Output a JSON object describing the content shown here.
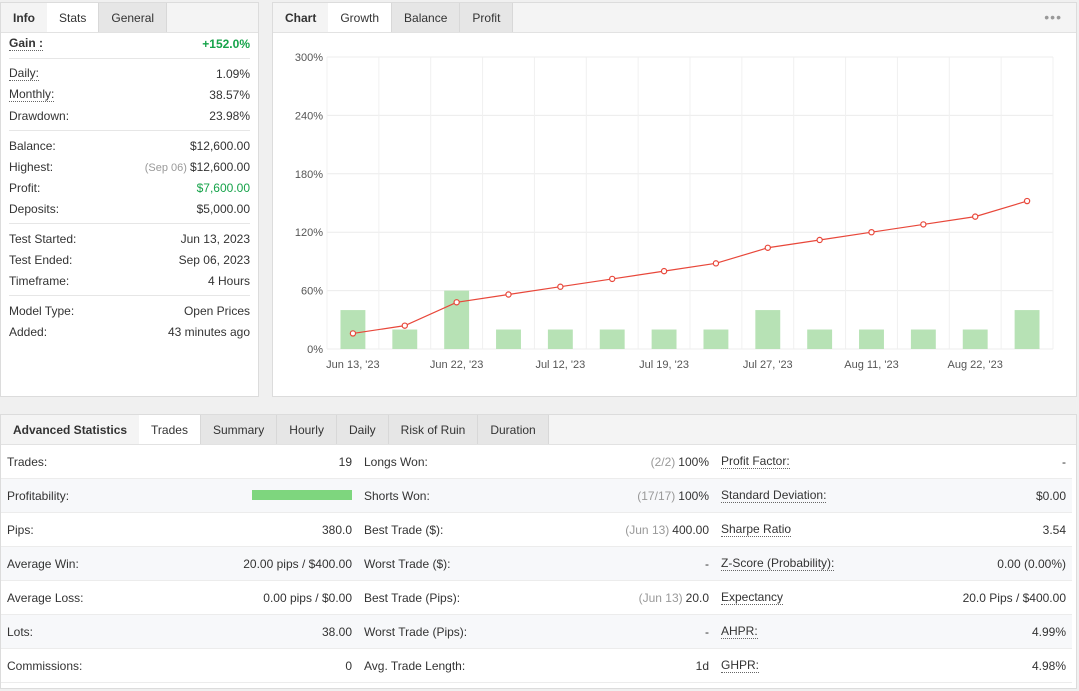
{
  "info": {
    "tabs": [
      "Info",
      "Stats",
      "General"
    ],
    "rows": [
      {
        "label": "Gain :",
        "value": "+152.0%",
        "green": true,
        "bold": true,
        "underline": true
      },
      {
        "sep": true
      },
      {
        "label": "Daily:",
        "value": "1.09%",
        "underline": true
      },
      {
        "label": "Monthly:",
        "value": "38.57%",
        "underline": true
      },
      {
        "label": "Drawdown:",
        "value": "23.98%"
      },
      {
        "sep": true
      },
      {
        "label": "Balance:",
        "value": "$12,600.00"
      },
      {
        "label": "Highest:",
        "muted": "(Sep 06)",
        "value": "$12,600.00"
      },
      {
        "label": "Profit:",
        "value": "$7,600.00",
        "green": true
      },
      {
        "label": "Deposits:",
        "value": "$5,000.00"
      },
      {
        "sep": true
      },
      {
        "label": "Test Started:",
        "value": "Jun 13, 2023"
      },
      {
        "label": "Test Ended:",
        "value": "Sep 06, 2023"
      },
      {
        "label": "Timeframe:",
        "value": "4 Hours"
      },
      {
        "sep": true
      },
      {
        "label": "Model Type:",
        "value": "Open Prices"
      },
      {
        "label": "Added:",
        "value": "43 minutes ago"
      }
    ]
  },
  "chart_panel": {
    "tabs": [
      "Chart",
      "Growth",
      "Balance",
      "Profit"
    ],
    "more_icon": "•••"
  },
  "chart_data": {
    "type": "bar",
    "y_ticks": [
      "300%",
      "240%",
      "180%",
      "120%",
      "60%",
      "0%"
    ],
    "ylim": [
      0,
      300
    ],
    "x_tick_labels": [
      "Jun 13, '23",
      "Jun 22, '23",
      "Jul 12, '23",
      "Jul 19, '23",
      "Jul 27, '23",
      "Aug 11, '23",
      "Aug 22, '23"
    ],
    "bars": [
      40,
      20,
      60,
      20,
      20,
      20,
      20,
      20,
      40,
      20,
      20,
      20,
      20,
      40
    ],
    "line": [
      16,
      24,
      48,
      56,
      64,
      72,
      80,
      88,
      104,
      112,
      120,
      128,
      136,
      152
    ],
    "bar_color": "#b7e2b5",
    "line_color": "#e8473a"
  },
  "advanced": {
    "tabs": [
      "Advanced Statistics",
      "Trades",
      "Summary",
      "Hourly",
      "Daily",
      "Risk of Ruin",
      "Duration"
    ],
    "rows": [
      [
        {
          "label": "Trades:",
          "value": "19"
        },
        {
          "label": "Longs Won:",
          "muted": "(2/2)",
          "value": "100%"
        },
        {
          "label": "Profit Factor:",
          "value": "-",
          "underline": true
        }
      ],
      [
        {
          "label": "Profitability:",
          "bar": true
        },
        {
          "label": "Shorts Won:",
          "muted": "(17/17)",
          "value": "100%"
        },
        {
          "label": "Standard Deviation:",
          "value": "$0.00",
          "underline": true
        }
      ],
      [
        {
          "label": "Pips:",
          "value": "380.0"
        },
        {
          "label": "Best Trade ($):",
          "muted": "(Jun 13)",
          "value": "400.00"
        },
        {
          "label": "Sharpe Ratio",
          "value": "3.54",
          "underline": true
        }
      ],
      [
        {
          "label": "Average Win:",
          "value": "20.00 pips / $400.00"
        },
        {
          "label": "Worst Trade ($):",
          "value": "-"
        },
        {
          "label": "Z-Score (Probability):",
          "value": "0.00 (0.00%)",
          "underline": true
        }
      ],
      [
        {
          "label": "Average Loss:",
          "value": "0.00 pips / $0.00"
        },
        {
          "label": "Best Trade (Pips):",
          "muted": "(Jun 13)",
          "value": "20.0"
        },
        {
          "label": "Expectancy",
          "value": "20.0 Pips / $400.00",
          "underline": true
        }
      ],
      [
        {
          "label": "Lots:",
          "value": "38.00"
        },
        {
          "label": "Worst Trade (Pips):",
          "value": "-"
        },
        {
          "label": "AHPR:",
          "value": "4.99%",
          "underline": true
        }
      ],
      [
        {
          "label": "Commissions:",
          "value": "0"
        },
        {
          "label": "Avg. Trade Length:",
          "value": "1d"
        },
        {
          "label": "GHPR:",
          "value": "4.98%",
          "underline": true
        }
      ]
    ]
  }
}
